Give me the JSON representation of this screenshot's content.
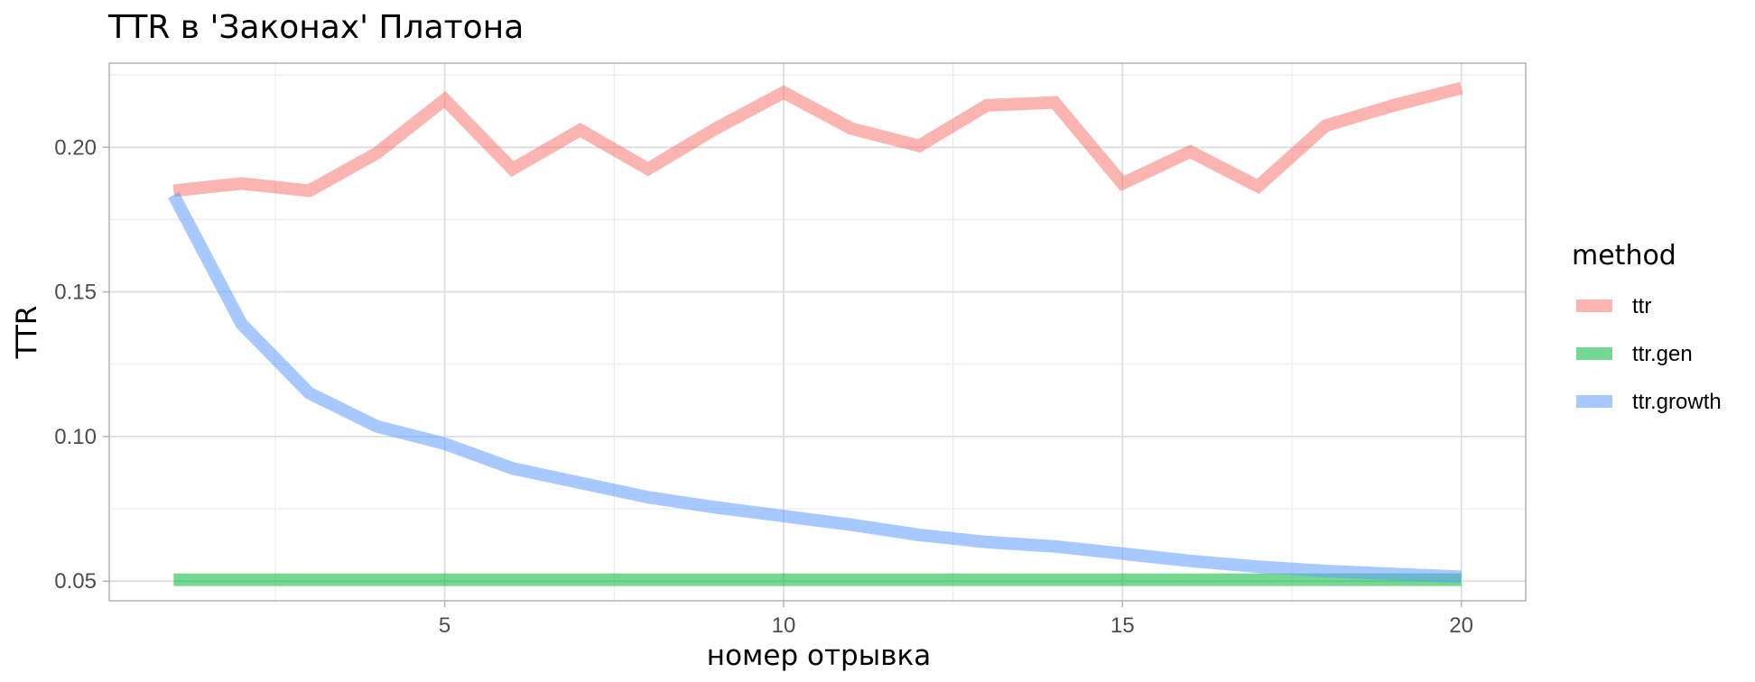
{
  "chart_data": {
    "type": "line",
    "title": "TTR в 'Законах' Платона",
    "xlabel": "номер отрывка",
    "ylabel": "TTR",
    "xlim": [
      0.05,
      20.95
    ],
    "ylim": [
      0.0432,
      0.2291
    ],
    "x_ticks": [
      5,
      10,
      15,
      20
    ],
    "x_tick_labels": [
      "5",
      "10",
      "15",
      "20"
    ],
    "y_ticks": [
      0.05,
      0.1,
      0.15,
      0.2
    ],
    "y_tick_labels": [
      "0.05",
      "0.10",
      "0.15",
      "0.20"
    ],
    "grid": true,
    "legend_title": "method",
    "legend_position": "right",
    "x": [
      1,
      2,
      3,
      4,
      5,
      6,
      7,
      8,
      9,
      10,
      11,
      12,
      13,
      14,
      15,
      16,
      17,
      18,
      19,
      20
    ],
    "series": [
      {
        "name": "ttr",
        "color": "#F8766D",
        "values": [
          0.185,
          0.1875,
          0.185,
          0.198,
          0.2165,
          0.1925,
          0.206,
          0.1925,
          0.2065,
          0.219,
          0.2065,
          0.2005,
          0.2145,
          0.2155,
          0.1875,
          0.1985,
          0.1865,
          0.2075,
          0.2145,
          0.2205
        ]
      },
      {
        "name": "ttr.gen",
        "color": "#00BA38",
        "values": [
          0.0505,
          0.0505,
          0.0505,
          0.0505,
          0.0505,
          0.0505,
          0.0505,
          0.0505,
          0.0505,
          0.0505,
          0.0505,
          0.0505,
          0.0505,
          0.0505,
          0.0505,
          0.0505,
          0.0505,
          0.0505,
          0.0505,
          0.0505
        ]
      },
      {
        "name": "ttr.growth",
        "color": "#619CFF",
        "values": [
          0.1835,
          0.139,
          0.115,
          0.1035,
          0.0975,
          0.089,
          0.084,
          0.079,
          0.0755,
          0.0725,
          0.0695,
          0.066,
          0.0635,
          0.062,
          0.0595,
          0.057,
          0.055,
          0.0535,
          0.0525,
          0.0515
        ]
      }
    ]
  }
}
